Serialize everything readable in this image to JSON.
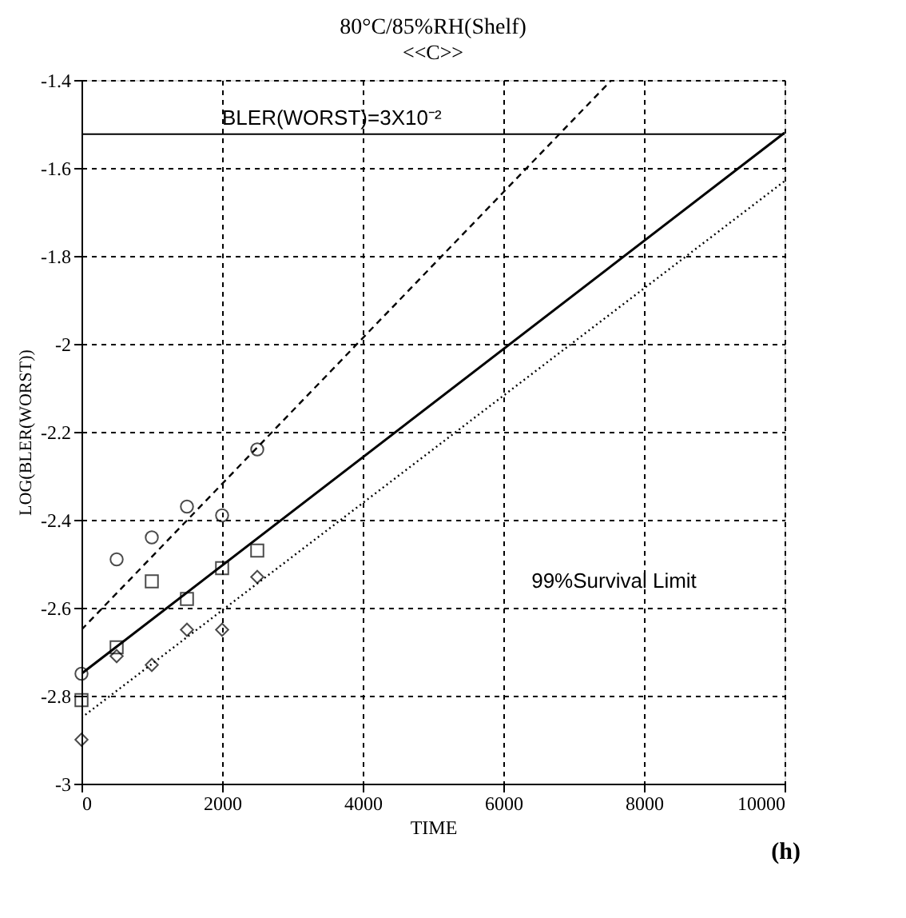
{
  "chart_data": {
    "type": "scatter",
    "title": "80°C/85%RH(Shelf)",
    "subtitle": "<<C>>",
    "xlabel": "TIME",
    "ylabel": "LOG(BLER(WORST))",
    "x": [
      0,
      500,
      1000,
      1500,
      2000,
      2500
    ],
    "series": [
      {
        "color": "#000000",
        "marker": "circle",
        "values": [
          -2.75,
          -2.49,
          -2.44,
          -2.37,
          -2.39,
          -2.24
        ]
      },
      {
        "color": "#000000",
        "marker": "square",
        "values": [
          -2.81,
          -2.69,
          -2.54,
          -2.58,
          -2.51,
          -2.47
        ]
      },
      {
        "color": "#000000",
        "marker": "diamond",
        "values": [
          -2.9,
          -2.71,
          -2.73,
          -2.65,
          -2.65,
          -2.53
        ]
      },
      {
        "type": "line",
        "color": "#000000",
        "line_style": "solid",
        "x": [
          0,
          10000
        ],
        "values": [
          -2.75,
          -1.52
        ]
      },
      {
        "type": "line",
        "color": "#000000",
        "line_style": "dashed",
        "x": [
          0,
          7540
        ],
        "values": [
          -2.65,
          -1.4
        ]
      },
      {
        "type": "line",
        "color": "#000000",
        "line_style": "dotted",
        "x": [
          0,
          10000
        ],
        "values": [
          -2.85,
          -1.63
        ]
      }
    ],
    "xlim": [
      0,
      10000
    ],
    "xticks": [
      0,
      2000,
      4000,
      6000,
      8000,
      10000
    ],
    "ylim": [
      -3,
      -1.4
    ],
    "yticks": [
      -3,
      -2.8,
      -2.6,
      -2.4,
      -2.2,
      -2,
      -1.8,
      -1.6,
      -1.4
    ],
    "ref_lines": [
      {
        "axis": "y",
        "value": -1.523,
        "color": "#000000"
      }
    ],
    "annotations": [
      {
        "text": "BLER(WORST)=3X10⁻²",
        "x": 2000,
        "y": -1.523
      },
      "99%Survival Limit",
      "(h)"
    ],
    "grid": true
  }
}
